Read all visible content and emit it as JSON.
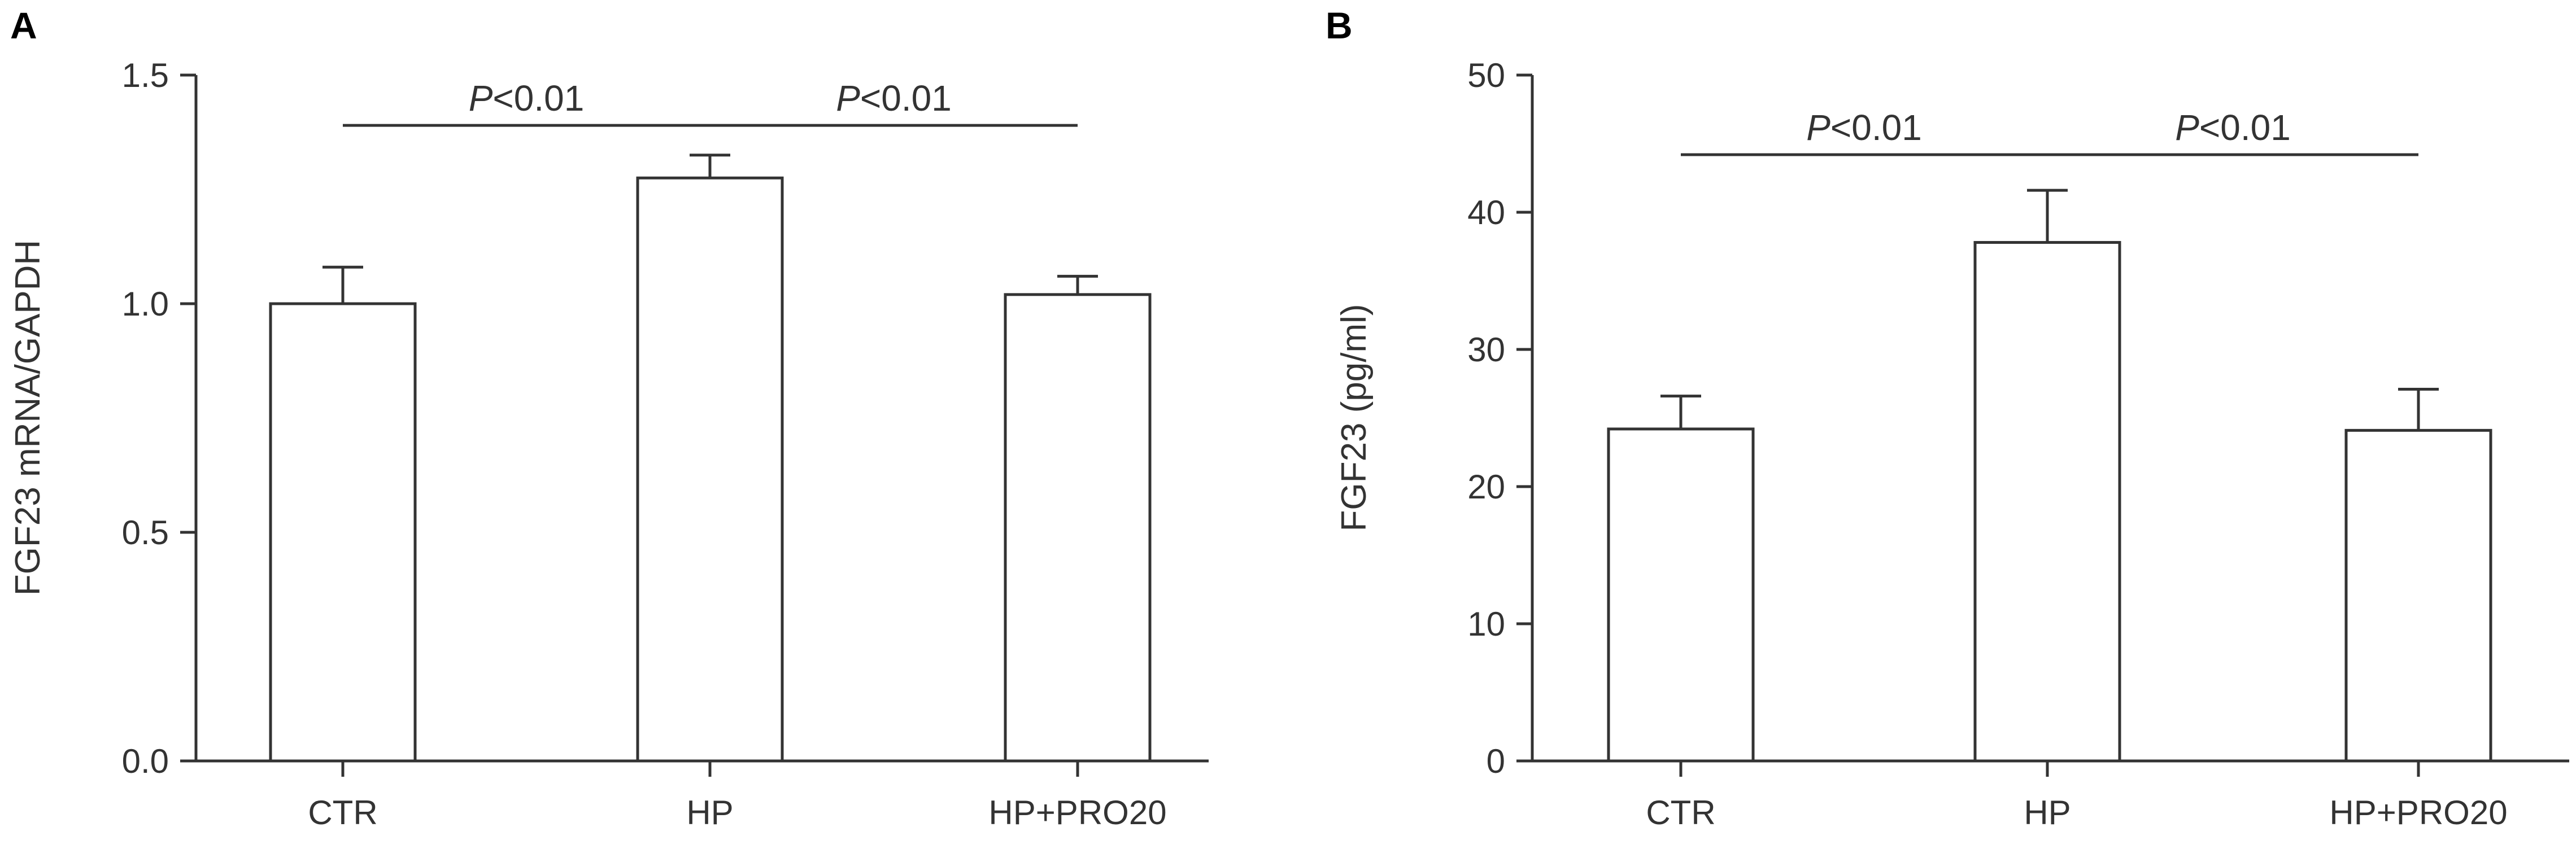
{
  "chart_data": [
    {
      "panel_label": "A",
      "type": "bar",
      "title": "",
      "xlabel": "",
      "ylabel": "FGF23 mRNA/GAPDH",
      "ylim": [
        0,
        1.5
      ],
      "yticks": [
        0.0,
        0.5,
        1.0,
        1.5
      ],
      "ytick_labels": [
        "0.0",
        "0.5",
        "1.0",
        "1.5"
      ],
      "categories": [
        "CTR",
        "HP",
        "HP+PRO20"
      ],
      "values": [
        1.0,
        1.275,
        1.02
      ],
      "error": [
        0.08,
        0.05,
        0.04
      ],
      "grid": false,
      "significance": [
        {
          "from": 0,
          "to": 1,
          "y": 1.39,
          "p": "P",
          "text": "<0.01"
        },
        {
          "from": 1,
          "to": 2,
          "y": 1.39,
          "p": "P",
          "text": "<0.01"
        }
      ]
    },
    {
      "panel_label": "B",
      "type": "bar",
      "title": "",
      "xlabel": "",
      "ylabel": "FGF23 (pg/ml)",
      "ylim": [
        0,
        50
      ],
      "yticks": [
        0,
        10,
        20,
        30,
        40,
        50
      ],
      "ytick_labels": [
        "0",
        "10",
        "20",
        "30",
        "40",
        "50"
      ],
      "categories": [
        "CTR",
        "HP",
        "HP+PRO20"
      ],
      "values": [
        24.2,
        37.8,
        24.1
      ],
      "error": [
        2.4,
        3.8,
        3.0
      ],
      "grid": false,
      "significance": [
        {
          "from": 0,
          "to": 1,
          "y": 44.2,
          "p": "P",
          "text": "<0.01"
        },
        {
          "from": 1,
          "to": 2,
          "y": 44.2,
          "p": "P",
          "text": "<0.01"
        }
      ]
    }
  ]
}
